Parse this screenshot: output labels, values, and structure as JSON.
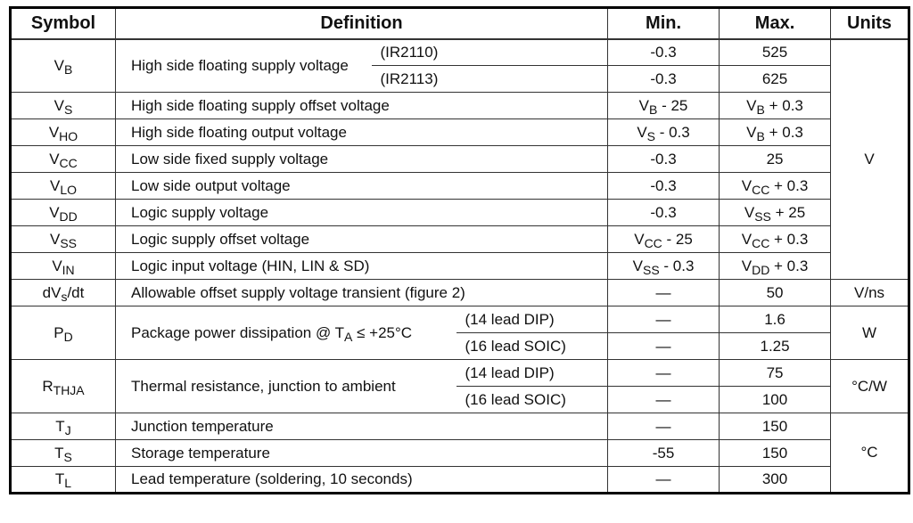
{
  "headers": {
    "symbol": "Symbol",
    "definition": "Definition",
    "min": "Min.",
    "max": "Max.",
    "units": "Units"
  },
  "rows": [
    {
      "symbol": [
        {
          "t": "V"
        },
        {
          "sub": "B"
        }
      ],
      "definition": [
        {
          "t": "High side floating supply voltage"
        }
      ],
      "qualifier_style": "short",
      "variants": [
        {
          "label": "(IR2110)",
          "min": [
            {
              "t": "-0.3"
            }
          ],
          "max": [
            {
              "t": "525"
            }
          ]
        },
        {
          "label": "(IR2113)",
          "min": [
            {
              "t": "-0.3"
            }
          ],
          "max": [
            {
              "t": "625"
            }
          ]
        }
      ],
      "units": "V"
    },
    {
      "symbol": [
        {
          "t": "V"
        },
        {
          "sub": "S"
        }
      ],
      "definition": [
        {
          "t": "High side floating supply offset voltage"
        }
      ],
      "variants": [
        {
          "min": [
            {
              "t": "V"
            },
            {
              "sub": "B"
            },
            {
              "t": " - 25"
            }
          ],
          "max": [
            {
              "t": "V"
            },
            {
              "sub": "B"
            },
            {
              "t": " + 0.3"
            }
          ]
        }
      ],
      "units": "V"
    },
    {
      "symbol": [
        {
          "t": "V"
        },
        {
          "sub": "HO"
        }
      ],
      "definition": [
        {
          "t": "High side floating output voltage"
        }
      ],
      "variants": [
        {
          "min": [
            {
              "t": "V"
            },
            {
              "sub": "S"
            },
            {
              "t": " - 0.3"
            }
          ],
          "max": [
            {
              "t": "V"
            },
            {
              "sub": "B"
            },
            {
              "t": " + 0.3"
            }
          ]
        }
      ],
      "units": "V"
    },
    {
      "symbol": [
        {
          "t": "V"
        },
        {
          "sub": "CC"
        }
      ],
      "definition": [
        {
          "t": "Low side fixed supply voltage"
        }
      ],
      "variants": [
        {
          "min": [
            {
              "t": "-0.3"
            }
          ],
          "max": [
            {
              "t": "25"
            }
          ]
        }
      ],
      "units": "V"
    },
    {
      "symbol": [
        {
          "t": "V"
        },
        {
          "sub": "LO"
        }
      ],
      "definition": [
        {
          "t": "Low side output voltage"
        }
      ],
      "variants": [
        {
          "min": [
            {
              "t": "-0.3"
            }
          ],
          "max": [
            {
              "t": "V"
            },
            {
              "sub": "CC"
            },
            {
              "t": " + 0.3"
            }
          ]
        }
      ],
      "units": "V"
    },
    {
      "symbol": [
        {
          "t": "V"
        },
        {
          "sub": "DD"
        }
      ],
      "definition": [
        {
          "t": "Logic supply voltage"
        }
      ],
      "variants": [
        {
          "min": [
            {
              "t": "-0.3"
            }
          ],
          "max": [
            {
              "t": "V"
            },
            {
              "sub": "SS"
            },
            {
              "t": " + 25"
            }
          ]
        }
      ],
      "units": "V"
    },
    {
      "symbol": [
        {
          "t": "V"
        },
        {
          "sub": "SS"
        }
      ],
      "definition": [
        {
          "t": "Logic supply offset voltage"
        }
      ],
      "variants": [
        {
          "min": [
            {
              "t": "V"
            },
            {
              "sub": "CC"
            },
            {
              "t": " - 25"
            }
          ],
          "max": [
            {
              "t": "V"
            },
            {
              "sub": "CC"
            },
            {
              "t": " + 0.3"
            }
          ]
        }
      ],
      "units": "V"
    },
    {
      "symbol": [
        {
          "t": "V"
        },
        {
          "sub": "IN"
        }
      ],
      "definition": [
        {
          "t": "Logic input voltage (HIN, LIN & SD)"
        }
      ],
      "variants": [
        {
          "min": [
            {
              "t": "V"
            },
            {
              "sub": "SS"
            },
            {
              "t": " - 0.3"
            }
          ],
          "max": [
            {
              "t": "V"
            },
            {
              "sub": "DD"
            },
            {
              "t": " + 0.3"
            }
          ]
        }
      ],
      "units": "V"
    },
    {
      "symbol": [
        {
          "t": "dV"
        },
        {
          "sub": "s"
        },
        {
          "t": "/dt"
        }
      ],
      "definition": [
        {
          "t": "Allowable offset supply voltage transient (figure 2)"
        }
      ],
      "variants": [
        {
          "min": [
            {
              "t": "—"
            }
          ],
          "max": [
            {
              "t": "50"
            }
          ]
        }
      ],
      "units": "V/ns"
    },
    {
      "symbol": [
        {
          "t": "P"
        },
        {
          "sub": "D"
        }
      ],
      "definition": [
        {
          "t": "Package power dissipation @ T"
        },
        {
          "sub": "A"
        },
        {
          "t": " ≤ +25°C"
        }
      ],
      "qualifier_style": "long",
      "variants": [
        {
          "label": "(14 lead DIP)",
          "min": [
            {
              "t": "—"
            }
          ],
          "max": [
            {
              "t": "1.6"
            }
          ]
        },
        {
          "label": "(16 lead SOIC)",
          "min": [
            {
              "t": "—"
            }
          ],
          "max": [
            {
              "t": "1.25"
            }
          ]
        }
      ],
      "units": "W"
    },
    {
      "symbol": [
        {
          "t": "R"
        },
        {
          "sub": "THJA"
        }
      ],
      "definition": [
        {
          "t": "Thermal resistance, junction to ambient"
        }
      ],
      "qualifier_style": "long",
      "variants": [
        {
          "label": "(14 lead DIP)",
          "min": [
            {
              "t": "—"
            }
          ],
          "max": [
            {
              "t": "75"
            }
          ]
        },
        {
          "label": "(16 lead SOIC)",
          "min": [
            {
              "t": "—"
            }
          ],
          "max": [
            {
              "t": "100"
            }
          ]
        }
      ],
      "units": "°C/W"
    },
    {
      "symbol": [
        {
          "t": "T"
        },
        {
          "sub": "J"
        }
      ],
      "definition": [
        {
          "t": "Junction temperature"
        }
      ],
      "variants": [
        {
          "min": [
            {
              "t": "—"
            }
          ],
          "max": [
            {
              "t": "150"
            }
          ]
        }
      ],
      "units": "°C"
    },
    {
      "symbol": [
        {
          "t": "T"
        },
        {
          "sub": "S"
        }
      ],
      "definition": [
        {
          "t": "Storage temperature"
        }
      ],
      "variants": [
        {
          "min": [
            {
              "t": "-55"
            }
          ],
          "max": [
            {
              "t": "150"
            }
          ]
        }
      ],
      "units": "°C"
    },
    {
      "symbol": [
        {
          "t": "T"
        },
        {
          "sub": "L"
        }
      ],
      "definition": [
        {
          "t": "Lead temperature (soldering, 10 seconds)"
        }
      ],
      "variants": [
        {
          "min": [
            {
              "t": "—"
            }
          ],
          "max": [
            {
              "t": "300"
            }
          ]
        }
      ],
      "units": "°C"
    }
  ]
}
